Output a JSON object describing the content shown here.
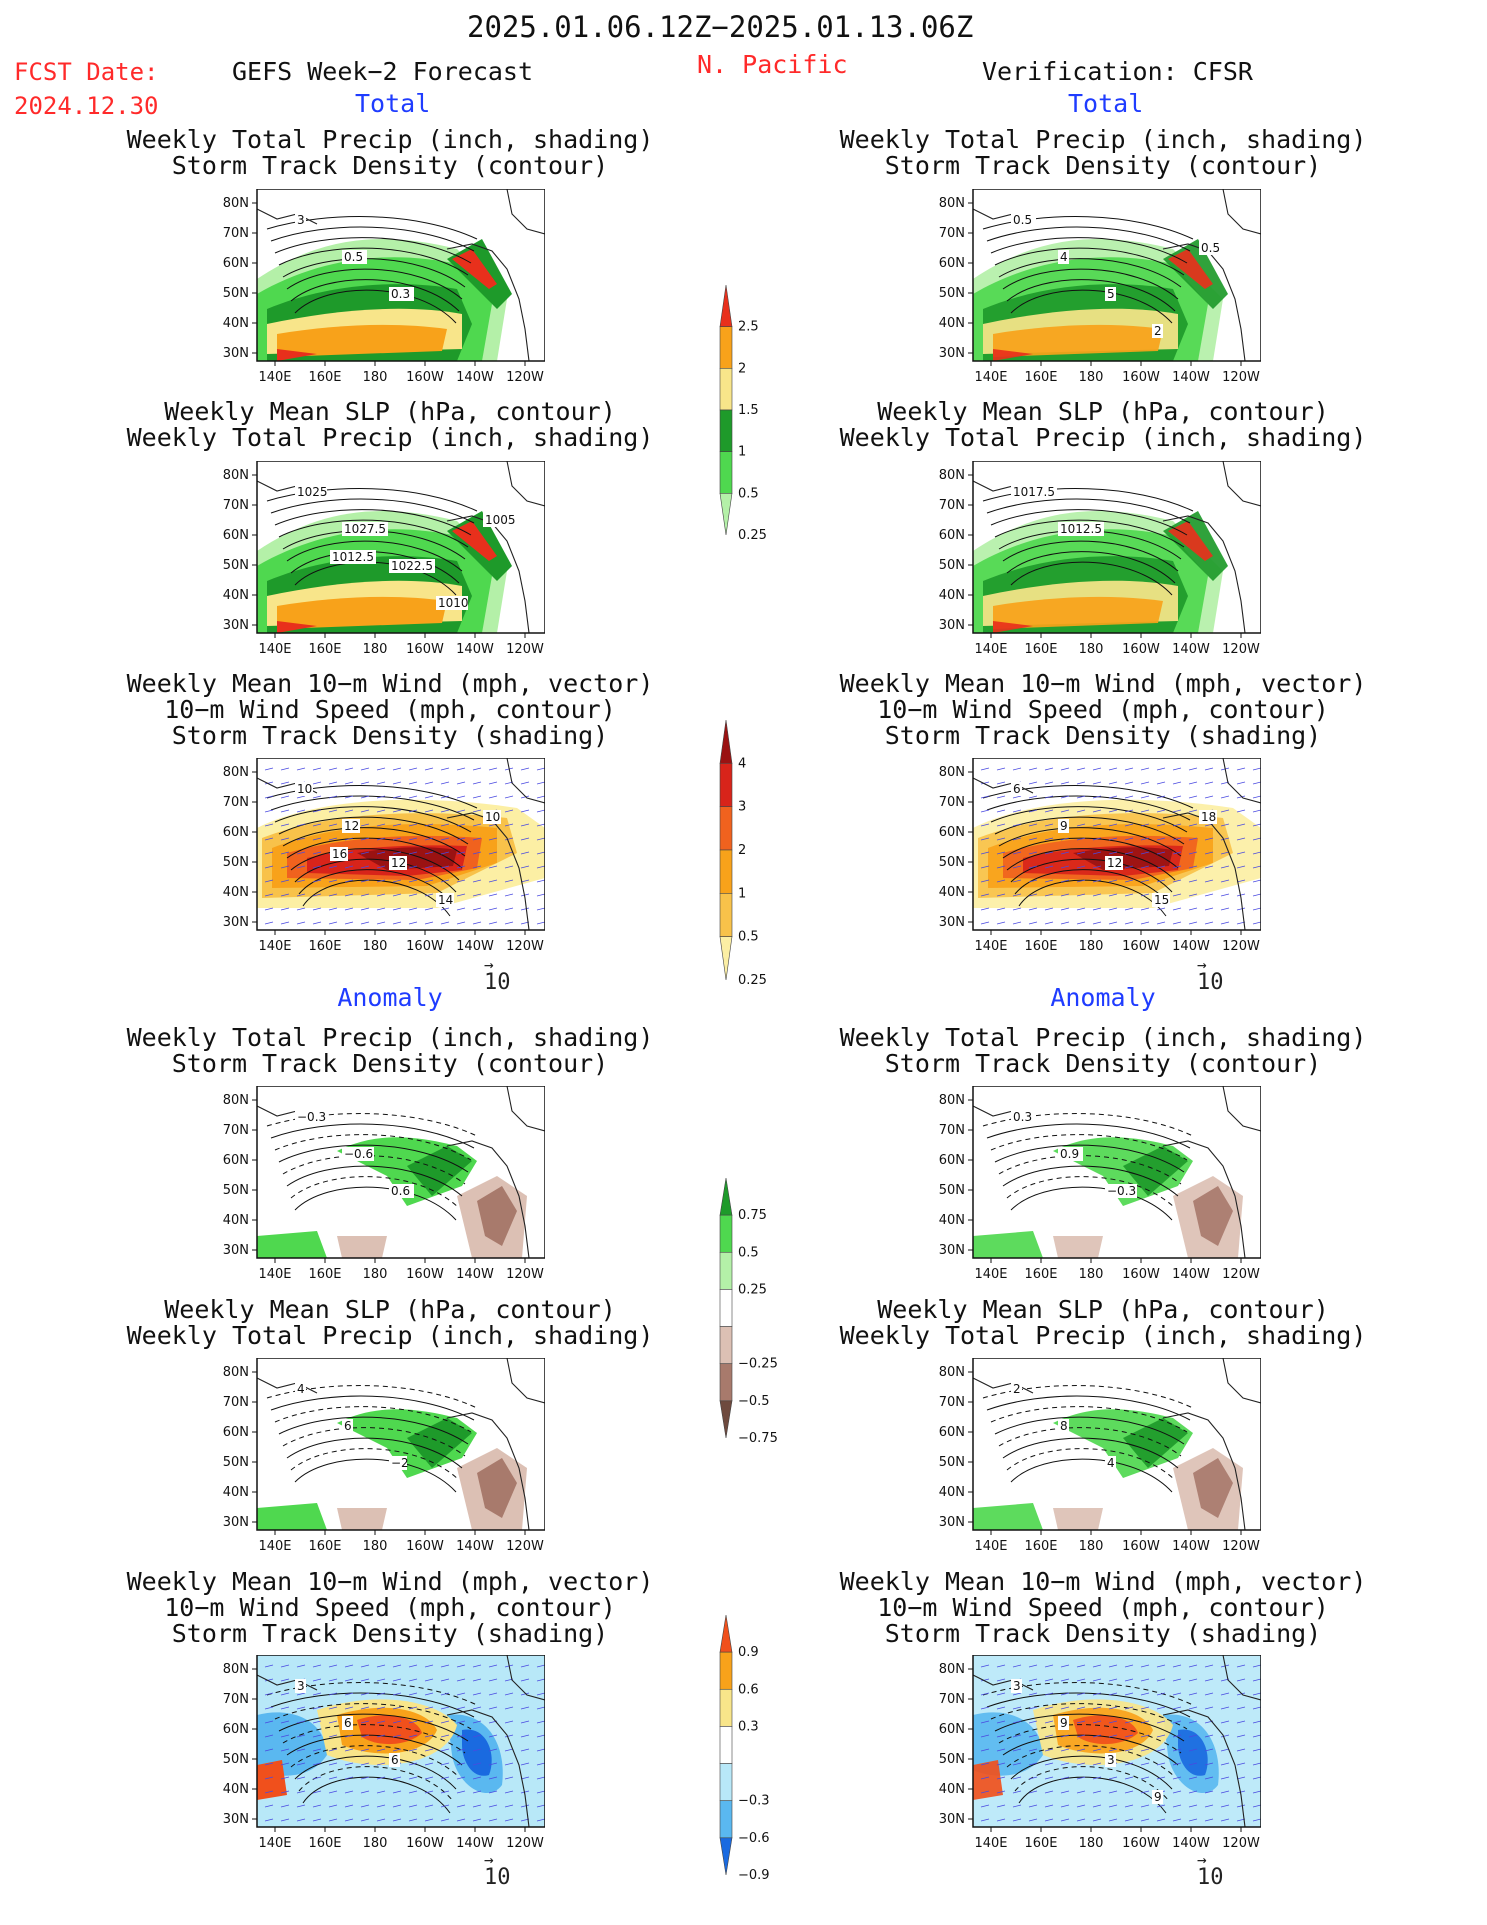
{
  "header": {
    "date_range": "2025.01.06.12Z−2025.01.13.06Z",
    "fcst_label": "FCST Date:",
    "fcst_date": "2024.12.30",
    "left_title": "GEFS Week−2 Forecast",
    "region": "N. Pacific",
    "right_title": "Verification: CFSR"
  },
  "sections": {
    "total": "Total",
    "anomaly": "Anomaly"
  },
  "panel_titles": {
    "precip_storm": [
      "Weekly Total Precip (inch, shading)",
      "Storm Track Density (contour)"
    ],
    "slp_precip": [
      "Weekly Mean SLP (hPa, contour)",
      "Weekly Total Precip (inch, shading)"
    ],
    "wind_storm": [
      "Weekly Mean 10−m Wind (mph, vector)",
      "10−m Wind Speed (mph, contour)",
      "Storm Track Density (shading)"
    ]
  },
  "axes": {
    "lat_labels": [
      "80N",
      "70N",
      "60N",
      "50N",
      "40N",
      "30N"
    ],
    "lon_labels": [
      "140E",
      "160E",
      "180",
      "160W",
      "140W",
      "120W"
    ]
  },
  "vector_ref": "10",
  "colorbars": {
    "precip_total": {
      "labels": [
        "2.5",
        "2",
        "1.5",
        "1",
        "0.5",
        "0.25"
      ],
      "colors": [
        "#e8301c",
        "#f8a21a",
        "#f8e58a",
        "#1e9a2a",
        "#4fd84f",
        "#b4f0a8"
      ]
    },
    "storm_total": {
      "labels": [
        "4",
        "3",
        "2",
        "1",
        "0.5",
        "0.25"
      ],
      "colors": [
        "#9a1212",
        "#d8241a",
        "#f0621e",
        "#f8a21a",
        "#f8c24a",
        "#fcefa4"
      ]
    },
    "precip_anom": {
      "labels": [
        "0.75",
        "0.5",
        "0.25",
        "−0.25",
        "−0.5",
        "−0.75"
      ],
      "colors": [
        "#1e9a2a",
        "#4fd84f",
        "#b4f0a8",
        "#ffffff",
        "#dcc0b4",
        "#a87a6c",
        "#6e4a3e"
      ]
    },
    "storm_anom": {
      "labels": [
        "0.9",
        "0.6",
        "0.3",
        "−0.3",
        "−0.6",
        "−0.9"
      ],
      "colors": [
        "#f0501c",
        "#f8a21a",
        "#f8e58a",
        "#ffffff",
        "#b8e8f8",
        "#5ab8f0",
        "#1a6ae0"
      ]
    }
  },
  "contour_labels": {
    "l_precip_total": [
      "3",
      "0.5",
      "0.3"
    ],
    "r_precip_total": [
      "0.5",
      "4",
      "5",
      "2",
      "0.5"
    ],
    "l_slp_total": [
      "1025",
      "1027.5",
      "1022.5",
      "1010",
      "1005",
      "1012.5"
    ],
    "r_slp_total": [
      "1017.5",
      "1012.5"
    ],
    "l_wind_total": [
      "10",
      "12",
      "12",
      "14",
      "10",
      "16"
    ],
    "r_wind_total": [
      "6",
      "9",
      "12",
      "15",
      "18"
    ],
    "l_precip_anom": [
      "−0.3",
      "−0.6",
      "0.6"
    ],
    "r_precip_anom": [
      "0.3",
      "0.9",
      "−0.3"
    ],
    "l_slp_anom": [
      "4",
      "6",
      "−2"
    ],
    "r_slp_anom": [
      "2",
      "8",
      "4"
    ],
    "l_wind_anom": [
      "3",
      "6",
      "6"
    ],
    "r_wind_anom": [
      "3",
      "9",
      "3",
      "9"
    ]
  }
}
